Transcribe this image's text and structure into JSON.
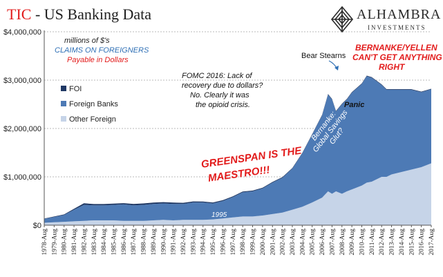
{
  "header": {
    "title_accent": "TIC",
    "title_rest": " - US Banking Data",
    "logo_brand": "ALHAMBRA",
    "logo_sub": "INVESTMENTS"
  },
  "colors": {
    "foi": "#1f3864",
    "foreign_banks": "#4d7ab5",
    "other_foreign": "#c6d4e8",
    "accent_red": "#e21b1b",
    "unit_blue": "#2e6fb5"
  },
  "annotations": {
    "unit1": "millions of $'s",
    "unit2": "CLAIMS  ON FOREIGNERS",
    "unit3": "Payable  in Dollars",
    "fomc1": "FOMC 2016: Lack of",
    "fomc2": "recovery due to dollars?",
    "fomc3": "No. Clearly it was",
    "fomc4": "the opioid crisis.",
    "bear": "Bear Stearns",
    "panic": "Panic",
    "bern1": "BERNANKE/YELLEN",
    "bern2": "CAN'T GET ANYTHING",
    "bern3": "RIGHT",
    "green1": "GREENSPAN IS THE",
    "green2": "MAESTRO!!!",
    "glut1": "Bernanke:",
    "glut2": "Global Savings",
    "glut3": "Glut?",
    "y1995": "1995"
  },
  "chart_data": {
    "type": "area",
    "stacked": true,
    "y_unit": "millions of $'s",
    "ylim": [
      0,
      4000000
    ],
    "yticks": [
      "$0",
      "$1,000,000",
      "$2,000,000",
      "$3,000,000",
      "$4,000,000"
    ],
    "ytick_values": [
      0,
      1000000,
      2000000,
      3000000,
      4000000
    ],
    "grid": true,
    "legend_position": "left",
    "x_labels": [
      "1978-Aug",
      "1979-Aug",
      "1980-Aug",
      "1981-Aug",
      "1982-Aug",
      "1983-Aug",
      "1984-Aug",
      "1985-Aug",
      "1986-Aug",
      "1987-Aug",
      "1988-Aug",
      "1989-Aug",
      "1990-Aug",
      "1991-Aug",
      "1992-Aug",
      "1993-Aug",
      "1994-Aug",
      "1995-Aug",
      "1996-Aug",
      "1997-Aug",
      "1998-Aug",
      "1999-Aug",
      "2000-Aug",
      "2001-Aug",
      "2002-Aug",
      "2003-Aug",
      "2004-Aug",
      "2005-Aug",
      "2006-Aug",
      "2007-Aug",
      "2008-Aug",
      "2009-Aug",
      "2010-Aug",
      "2011-Aug",
      "2012-Aug",
      "2013-Aug",
      "2014-Aug",
      "2015-Aug",
      "2016-Aug",
      "2017-Aug"
    ],
    "x": [
      1978.6,
      1979.6,
      1980.6,
      1981.6,
      1982.6,
      1983.6,
      1984.6,
      1985.6,
      1986.6,
      1987.6,
      1988.6,
      1989.6,
      1990.6,
      1991.6,
      1992.6,
      1993.6,
      1994.6,
      1995.6,
      1996.6,
      1997.6,
      1998.6,
      1999.6,
      2000.6,
      2001.6,
      2002.6,
      2003.6,
      2004.6,
      2005.6,
      2006.6,
      2007.2,
      2007.6,
      2008.0,
      2008.6,
      2009.1,
      2009.6,
      2010.6,
      2011.1,
      2011.6,
      2012.6,
      2013.1,
      2013.6,
      2014.6,
      2015.6,
      2016.6,
      2017.6
    ],
    "series": [
      {
        "name": "FOI",
        "values": [
          8000,
          10000,
          14000,
          19000,
          33000,
          27000,
          27000,
          26000,
          26000,
          29000,
          30000,
          28000,
          27000,
          28000,
          23000,
          21000,
          20000,
          19000,
          18000,
          17000,
          16000,
          16000,
          15000,
          14000,
          14000,
          13000,
          13000,
          13000,
          13000,
          13000,
          13000,
          12000,
          12000,
          12000,
          12000,
          12000,
          12000,
          12000,
          12000,
          12000,
          12000,
          12000,
          12000,
          12000,
          12000
        ]
      },
      {
        "name": "Foreign Banks",
        "values": [
          80000,
          110000,
          140000,
          240000,
          330000,
          310000,
          310000,
          320000,
          340000,
          320000,
          330000,
          340000,
          340000,
          340000,
          330000,
          360000,
          360000,
          330000,
          360000,
          420000,
          500000,
          520000,
          560000,
          650000,
          720000,
          850000,
          1100000,
          1400000,
          1700000,
          2000000,
          1950000,
          1650000,
          1850000,
          1900000,
          2000000,
          2100000,
          2200000,
          2150000,
          1900000,
          1800000,
          1750000,
          1700000,
          1650000,
          1550000,
          1530000
        ]
      },
      {
        "name": "Other Foreign",
        "values": [
          50000,
          60000,
          70000,
          80000,
          90000,
          100000,
          100000,
          100000,
          90000,
          90000,
          90000,
          100000,
          110000,
          100000,
          110000,
          110000,
          110000,
          120000,
          140000,
          160000,
          180000,
          180000,
          200000,
          230000,
          260000,
          320000,
          380000,
          470000,
          570000,
          700000,
          650000,
          700000,
          650000,
          700000,
          740000,
          820000,
          880000,
          900000,
          1000000,
          1000000,
          1050000,
          1100000,
          1150000,
          1200000,
          1280000
        ]
      }
    ]
  }
}
